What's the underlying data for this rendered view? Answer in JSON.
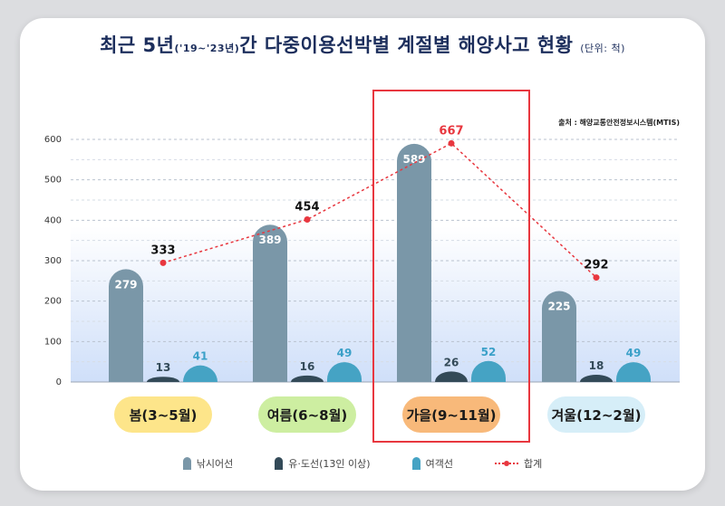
{
  "title": {
    "main1": "최근 5년",
    "period": "('19~'23년)",
    "main2": "간 다중이용선박별 계절별 해양사고 현황",
    "unit": "(단위: 척)"
  },
  "source": "출처 : 해양교통안전정보시스템(MTIS)",
  "chart_data": {
    "type": "bar",
    "categories": [
      "봄(3~5월)",
      "여름(6~8월)",
      "가을(9~11월)",
      "겨울(12~2월)"
    ],
    "series": [
      {
        "name": "낚시어선",
        "values": [
          279,
          389,
          589,
          225
        ]
      },
      {
        "name": "유·도선(13인 이상)",
        "values": [
          13,
          16,
          26,
          18
        ]
      },
      {
        "name": "여객선",
        "values": [
          41,
          49,
          52,
          49
        ]
      }
    ],
    "line_series": {
      "name": "합계",
      "values": [
        333,
        454,
        667,
        292
      ]
    },
    "y_ticks": [
      "0",
      "100",
      "200",
      "300",
      "400",
      "500",
      "600"
    ],
    "ylim": [
      0,
      600
    ],
    "highlight_category": "가을(9~11월)",
    "colors": {
      "낚시어선": "#7a97a8",
      "유·도선(13인 이상)": "#334a58",
      "여객선": "#45a3c4",
      "합계": "#e8373f",
      "category_fills": [
        "#fde58a",
        "#cdeea1",
        "#f8b97a",
        "#d6eef8"
      ],
      "highlight_box": "#e8373f"
    },
    "grid": true,
    "legend_position": "bottom"
  }
}
